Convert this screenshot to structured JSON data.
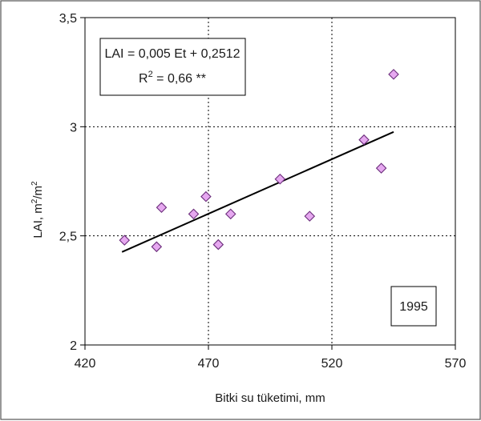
{
  "chart_data": {
    "type": "scatter",
    "title": "",
    "xlabel": "Bitki su tüketimi, mm",
    "ylabel_main": "LAI, m",
    "ylabel_sup1": "2",
    "ylabel_mid": "/m",
    "ylabel_sup2": "2",
    "xlim": [
      420,
      570
    ],
    "ylim": [
      2,
      3.5
    ],
    "x_ticks": [
      420,
      470,
      520,
      570
    ],
    "x_tick_labels": [
      "420",
      "470",
      "520",
      "570"
    ],
    "y_ticks": [
      2,
      2.5,
      3,
      3.5
    ],
    "y_tick_labels": [
      "2",
      "2,5",
      "3",
      "3,5"
    ],
    "grid": "dotted at major ticks",
    "series": [
      {
        "marker": "diamond",
        "color": "#e6a8f0",
        "points": [
          [
            436,
            2.48
          ],
          [
            449,
            2.45
          ],
          [
            451,
            2.63
          ],
          [
            464,
            2.6
          ],
          [
            469,
            2.68
          ],
          [
            474,
            2.46
          ],
          [
            479,
            2.6
          ],
          [
            499,
            2.76
          ],
          [
            511,
            2.59
          ],
          [
            533,
            2.94
          ],
          [
            540,
            2.81
          ],
          [
            545,
            3.24
          ]
        ]
      }
    ],
    "trendline": {
      "x": [
        435,
        545
      ],
      "slope": 0.005,
      "intercept": 0.2512
    },
    "annotations": {
      "equation": "LAI = 0,005 Et + 0,2512",
      "r2_prefix": "R",
      "r2_sup": "2",
      "r2_value": " = 0,66 **",
      "year": "1995"
    }
  }
}
